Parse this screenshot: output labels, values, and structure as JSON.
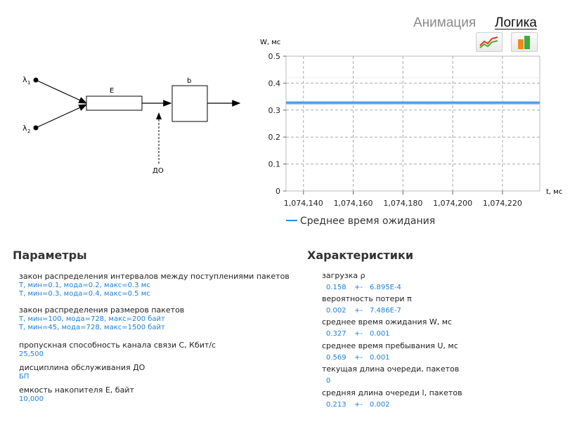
{
  "tabs": {
    "animation": "Анимация",
    "logic": "Логика"
  },
  "diagram": {
    "lambda1": "λ",
    "lambda1_sub": "1",
    "lambda2": "λ",
    "lambda2_sub": "2",
    "buffer_label": "E",
    "channel_label": "b",
    "loss_label": "ДО"
  },
  "chart_data": {
    "type": "line",
    "ylabel": "W, мс",
    "xlabel": "t, мс",
    "ylim": [
      0,
      0.5
    ],
    "yticks": [
      "0",
      "0.1",
      "0.2",
      "0.3",
      "0.4",
      "0.5"
    ],
    "xlim": [
      1074133,
      1074235
    ],
    "xticks": [
      "1,074,140",
      "1,074,160",
      "1,074,180",
      "1,074,200",
      "1,074,220"
    ],
    "xtick_values": [
      1074140,
      1074160,
      1074180,
      1074200,
      1074220
    ],
    "grid": true,
    "series": [
      {
        "name": "Среднее время ожидания",
        "color": "#2f86e0",
        "x": [
          1074133,
          1074235
        ],
        "y": [
          0.327,
          0.327
        ]
      }
    ]
  },
  "params": {
    "title": "Параметры",
    "items": [
      {
        "label": "закон распределения интервалов между поступлениями пакетов",
        "values": [
          "T, мин=0.1, мода=0.2, макс=0.3 мс",
          "T, мин=0.3, мода=0.4, макс=0.5 мс"
        ]
      },
      {
        "label": "закон распределения размеров пакетов",
        "values": [
          "T, мин=100, мода=728, макс=200 байт",
          "T, мин=45, мода=728, макс=1500 байт"
        ]
      },
      {
        "label": "пропускная способность канала связи С, Кбит/с",
        "values": [
          "25,500"
        ]
      },
      {
        "label": "дисциплина обслуживания ДО",
        "values": [
          "БП"
        ]
      },
      {
        "label": "емкость накопителя Е, байт",
        "values": [
          "10,000"
        ]
      }
    ]
  },
  "chars": {
    "title": "Характеристики",
    "items": [
      {
        "label": "загрузка ρ",
        "value": "0.158",
        "pm": "+-",
        "err": "6.895E-4"
      },
      {
        "label": "вероятность потери π",
        "value": "0.002",
        "pm": "+-",
        "err": "7.486E-7"
      },
      {
        "label": "среднее время ожидания W, мс",
        "value": "0.327",
        "pm": "+-",
        "err": "0.001"
      },
      {
        "label": "среднее время пребывания U, мс",
        "value": "0.569",
        "pm": "+-",
        "err": "0.001"
      },
      {
        "label": "текущая длина очереди, пакетов",
        "value": "0",
        "pm": "",
        "err": ""
      },
      {
        "label": "средняя длина очереди l, пакетов",
        "value": "0.213",
        "pm": "+-",
        "err": "0.002"
      }
    ]
  }
}
